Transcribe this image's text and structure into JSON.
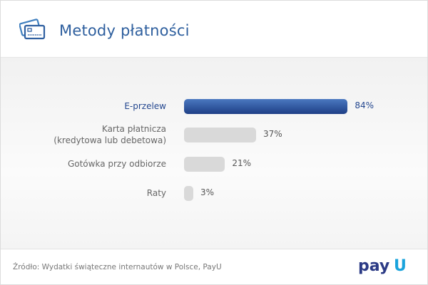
{
  "header": {
    "title": "Metody płatności",
    "icon": "credit-card-icon"
  },
  "chart_data": {
    "type": "bar",
    "orientation": "horizontal",
    "title": "Metody płatności",
    "categories": [
      "E-przelew",
      "Karta płatnicza (kredytowa lub debetowa)",
      "Gotówka przy odbiorze",
      "Raty"
    ],
    "category_lines": [
      [
        "E-przelew"
      ],
      [
        "Karta płatnicza",
        "(kredytowa lub debetowa)"
      ],
      [
        "Gotówka przy odbiorze"
      ],
      [
        "Raty"
      ]
    ],
    "values": [
      84,
      37,
      21,
      3
    ],
    "value_labels": [
      "84%",
      "37%",
      "21%",
      "3%"
    ],
    "highlight_index": 0,
    "unit": "%",
    "xlim": [
      0,
      100
    ]
  },
  "footer": {
    "source": "Źródło: Wydatki świąteczne internautów w Polsce, PayU",
    "logo_text": "PayU"
  },
  "colors": {
    "accent": "#24478f",
    "bar": "#d9d9d9",
    "logo_blue": "#2b3a85",
    "logo_cyan": "#1aa3dc"
  }
}
